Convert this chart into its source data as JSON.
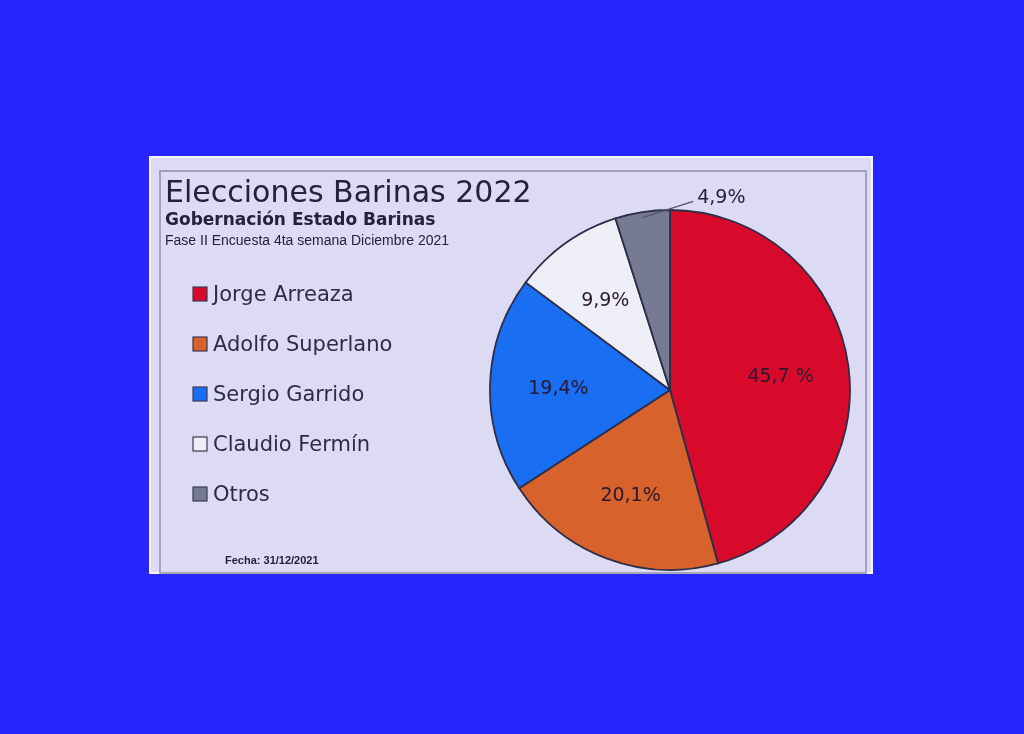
{
  "chart_data": {
    "type": "pie",
    "title": "Elecciones Barinas 2022",
    "subtitle": "Gobernación Estado Barinas",
    "annotations": [
      "Fase II Encuesta 4ta semana Diciembre 2021",
      "Fecha: 31/12/2021"
    ],
    "categories": [
      "Jorge Arreaza",
      "Adolfo Superlano",
      "Sergio Garrido",
      "Claudio Fermín",
      "Otros"
    ],
    "values": [
      45.7,
      20.1,
      19.4,
      9.9,
      4.9
    ],
    "value_labels": [
      "45,7 %",
      "20,1%",
      "19,4%",
      "9,9%",
      "4,9%"
    ],
    "colors": [
      "#d80a2c",
      "#d8622c",
      "#1a6ef2",
      "#eeeef6",
      "#767a92"
    ],
    "legend": "left"
  }
}
